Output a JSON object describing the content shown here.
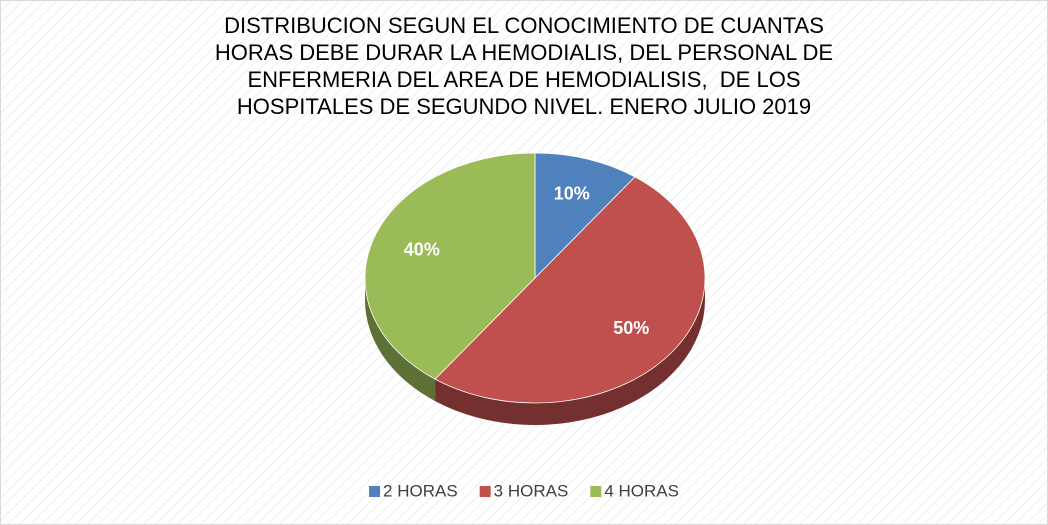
{
  "chart_data": {
    "type": "pie",
    "title": "DISTRIBUCION SEGUN EL CONOCIMIENTO DE CUANTAS\nHORAS DEBE DURAR LA HEMODIALIS, DEL PERSONAL DE\nENFERMERIA DEL AREA DE HEMODIALISIS,  DE LOS\nHOSPITALES DE SEGUNDO NIVEL. ENERO JULIO 2019",
    "categories": [
      "2 HORAS",
      "3 HORAS",
      "4 HORAS"
    ],
    "values": [
      10,
      50,
      40
    ],
    "value_labels": [
      "10%",
      "50%",
      "40%"
    ],
    "colors": [
      "#4f81bd",
      "#c0504d",
      "#9bbb59"
    ],
    "legend": "bottom"
  }
}
